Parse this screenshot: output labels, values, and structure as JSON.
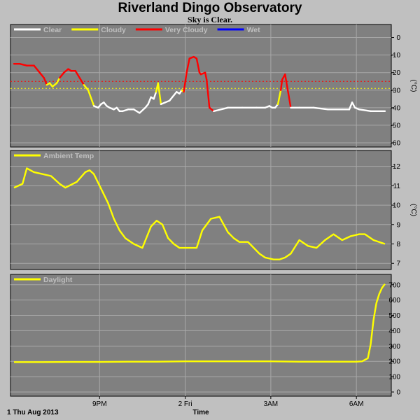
{
  "title": "Riverland Dingo Observatory",
  "subtitle": "Sky is Clear.",
  "x_axis": {
    "label": "Time",
    "date_label": "1 Thu Aug 2013",
    "ticks": [
      {
        "label": "9PM",
        "hour": 3
      },
      {
        "label": "2 Fri",
        "hour": 6
      },
      {
        "label": "3AM",
        "hour": 9
      },
      {
        "label": "6AM",
        "hour": 12
      }
    ],
    "range_hours": [
      0,
      13.1
    ]
  },
  "colors": {
    "plot_bg": "#808080",
    "frame_bg": "#c0c0c0",
    "clear": "#ffffff",
    "cloudy": "#ffff00",
    "very_cloudy": "#ff0000",
    "wet": "#0000ff"
  },
  "chart_data": [
    {
      "type": "line",
      "name": "sky",
      "ylabel": "(°C)",
      "ylim": [
        -60,
        5
      ],
      "yticks": [
        0,
        -10,
        -20,
        -30,
        -40,
        -50,
        -60
      ],
      "grid": true,
      "legend": [
        {
          "label": "Clear",
          "color": "#ffffff"
        },
        {
          "label": "Cloudy",
          "color": "#ffff00"
        },
        {
          "label": "Very Cloudy",
          "color": "#ff0000"
        },
        {
          "label": "Wet",
          "color": "#0000ff"
        }
      ],
      "legend_position": "top-left",
      "thresholds": [
        {
          "value": -25,
          "color": "#ff0000"
        },
        {
          "value": -29,
          "color": "#ffff00"
        }
      ],
      "x": [
        0,
        0.2,
        0.45,
        0.7,
        0.9,
        1.05,
        1.15,
        1.25,
        1.35,
        1.5,
        1.6,
        1.75,
        1.9,
        2.0,
        2.15,
        2.3,
        2.45,
        2.6,
        2.8,
        2.95,
        3.05,
        3.15,
        3.25,
        3.35,
        3.5,
        3.6,
        3.7,
        3.8,
        4.0,
        4.2,
        4.4,
        4.6,
        4.7,
        4.8,
        4.9,
        4.98,
        5.05,
        5.15,
        5.3,
        5.45,
        5.55,
        5.7,
        5.8,
        5.88,
        5.95,
        6.05,
        6.15,
        6.3,
        6.4,
        6.5,
        6.55,
        6.7,
        6.75,
        6.85,
        7.0,
        7.5,
        8.0,
        8.5,
        8.8,
        8.95,
        9.05,
        9.15,
        9.25,
        9.35,
        9.4,
        9.5,
        9.7,
        10.0,
        10.5,
        11.0,
        11.5,
        11.75,
        11.85,
        11.95,
        12.1,
        12.5,
        13.0
      ],
      "y": [
        -15,
        -15,
        -16,
        -16,
        -20,
        -23,
        -27,
        -26,
        -28,
        -26,
        -23,
        -20,
        -18,
        -19,
        -19,
        -23,
        -27,
        -30,
        -39,
        -40,
        -38,
        -37,
        -39,
        -40,
        -41,
        -40,
        -42,
        -42,
        -41,
        -41,
        -43,
        -40,
        -38,
        -34,
        -35,
        -31,
        -26,
        -38,
        -37,
        -36,
        -34,
        -31,
        -32,
        -30,
        -31,
        -20,
        -12,
        -11,
        -12,
        -20,
        -21,
        -20,
        -24,
        -40,
        -42,
        -40,
        -40,
        -40,
        -40,
        -39,
        -40,
        -40,
        -38,
        -30,
        -24,
        -21,
        -40,
        -40,
        -40,
        -41,
        -41,
        -41,
        -37,
        -40,
        -41,
        -42,
        -42
      ],
      "condition": [
        "C",
        "C",
        "C",
        "C",
        "C",
        "C",
        "Y",
        "Y",
        "Y",
        "Y",
        "C",
        "C",
        "C",
        "C",
        "C",
        "C",
        "Y",
        "Y",
        "W",
        "W",
        "W",
        "W",
        "W",
        "W",
        "W",
        "W",
        "W",
        "W",
        "W",
        "W",
        "W",
        "W",
        "W",
        "W",
        "W",
        "Y",
        "Y",
        "W",
        "W",
        "W",
        "W",
        "W",
        "W",
        "Y",
        "C",
        "C",
        "C",
        "C",
        "C",
        "C",
        "C",
        "C",
        "C",
        "C",
        "W",
        "W",
        "W",
        "W",
        "W",
        "W",
        "W",
        "W",
        "Y",
        "C",
        "C",
        "C",
        "W",
        "W",
        "W",
        "W",
        "W",
        "W",
        "W",
        "W",
        "W",
        "W",
        "W"
      ]
    },
    {
      "type": "line",
      "name": "ambient",
      "ylabel": "(°C)",
      "ylim": [
        6.9,
        12.6
      ],
      "yticks": [
        12,
        11,
        10,
        9,
        8,
        7
      ],
      "grid": true,
      "color": "#ffff00",
      "series": [
        {
          "name": "Ambient Temp",
          "x": [
            0,
            0.3,
            0.45,
            0.7,
            1.0,
            1.3,
            1.6,
            1.8,
            2.2,
            2.5,
            2.65,
            2.8,
            3.1,
            3.3,
            3.5,
            3.7,
            3.9,
            4.2,
            4.5,
            4.8,
            5.0,
            5.2,
            5.4,
            5.6,
            5.8,
            6.1,
            6.4,
            6.6,
            6.9,
            7.2,
            7.5,
            7.7,
            7.9,
            8.2,
            8.6,
            8.8,
            9.1,
            9.3,
            9.5,
            9.7,
            10.0,
            10.3,
            10.6,
            10.9,
            11.2,
            11.5,
            11.8,
            12.1,
            12.3,
            12.6,
            13.0
          ],
          "y": [
            10.9,
            11.1,
            11.9,
            11.7,
            11.6,
            11.5,
            11.1,
            10.9,
            11.2,
            11.7,
            11.8,
            11.6,
            10.7,
            10.1,
            9.3,
            8.7,
            8.3,
            8.0,
            7.8,
            8.9,
            9.2,
            9.0,
            8.3,
            8.0,
            7.8,
            7.8,
            7.8,
            8.7,
            9.3,
            9.4,
            8.6,
            8.3,
            8.1,
            8.1,
            7.5,
            7.3,
            7.2,
            7.2,
            7.3,
            7.5,
            8.2,
            7.9,
            7.8,
            8.2,
            8.5,
            8.2,
            8.4,
            8.5,
            8.5,
            8.2,
            8.0
          ]
        }
      ]
    },
    {
      "type": "line",
      "name": "daylight",
      "ylim": [
        0,
        740
      ],
      "yticks": [
        700,
        600,
        500,
        400,
        300,
        200,
        100,
        0
      ],
      "grid": true,
      "color": "#ffff00",
      "series": [
        {
          "name": "Daylight",
          "x": [
            0,
            1,
            2,
            3,
            4,
            5,
            6,
            7,
            8,
            9,
            10,
            11,
            12,
            12.2,
            12.4,
            12.5,
            12.6,
            12.7,
            12.8,
            12.9,
            13.0
          ],
          "y": [
            195,
            195,
            196,
            196,
            198,
            198,
            200,
            200,
            200,
            200,
            198,
            198,
            198,
            200,
            220,
            310,
            470,
            580,
            640,
            680,
            705
          ]
        }
      ]
    }
  ]
}
